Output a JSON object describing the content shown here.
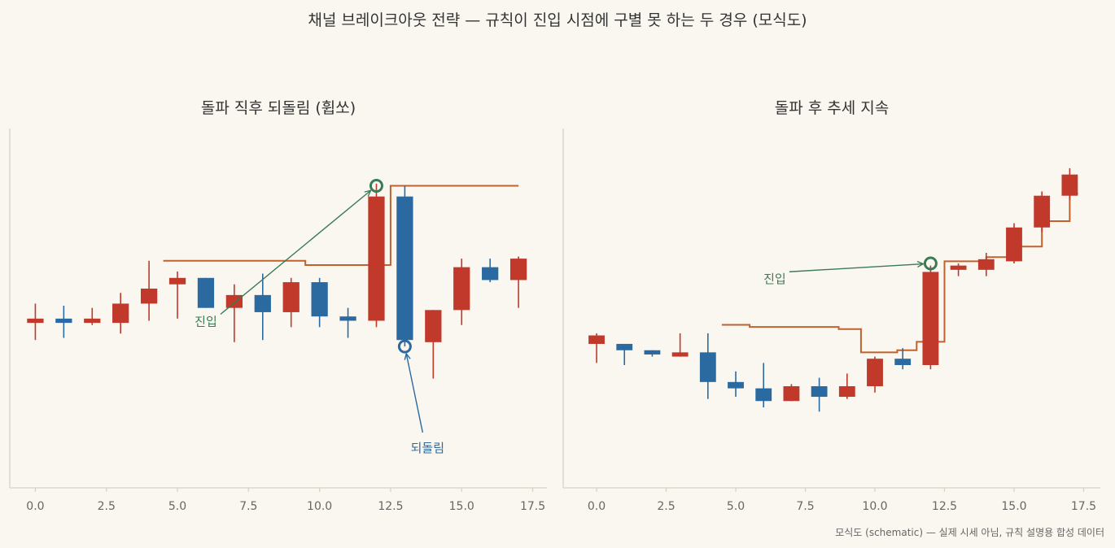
{
  "suptitle": "채널 브레이크아웃 전략 — 규칙이 진입 시점에 구별 못 하는 두 경우 (모식도)",
  "footnote": "모식도 (schematic) — 실제 시세 아님, 규칙 설명용 합성 데이터",
  "colors": {
    "up": "#c0392b",
    "down": "#2a6aa0",
    "channel": "#c0612e",
    "entry": "#3a7a55",
    "axis": "#d8d2c4",
    "tick_text": "#666666"
  },
  "chart_data": [
    {
      "type": "candlestick",
      "title": "돌파 직후 되돌림 (휩쏘)",
      "xlim": [
        -0.9,
        18.0
      ],
      "ylim": [
        96.4,
        113.1
      ],
      "xticks": [
        0.0,
        2.5,
        5.0,
        7.5,
        10.0,
        12.5,
        15.0,
        17.5
      ],
      "xtick_labels": [
        "0.0",
        "2.5",
        "5.0",
        "7.5",
        "10.0",
        "12.5",
        "15.0",
        "17.5"
      ],
      "candles": [
        {
          "x": 0,
          "open": 104.1,
          "high": 105.0,
          "low": 103.3,
          "close": 104.3
        },
        {
          "x": 1,
          "open": 104.3,
          "high": 104.9,
          "low": 103.4,
          "close": 104.1
        },
        {
          "x": 2,
          "open": 104.1,
          "high": 104.8,
          "low": 104.0,
          "close": 104.3
        },
        {
          "x": 3,
          "open": 104.1,
          "high": 105.5,
          "low": 103.6,
          "close": 105.0
        },
        {
          "x": 4,
          "open": 105.0,
          "high": 107.0,
          "low": 104.2,
          "close": 105.7
        },
        {
          "x": 5,
          "open": 105.9,
          "high": 106.5,
          "low": 104.3,
          "close": 106.2
        },
        {
          "x": 6,
          "open": 106.2,
          "high": 106.2,
          "low": 104.8,
          "close": 104.8
        },
        {
          "x": 7,
          "open": 104.8,
          "high": 105.9,
          "low": 103.2,
          "close": 105.4
        },
        {
          "x": 8,
          "open": 105.4,
          "high": 106.4,
          "low": 103.3,
          "close": 104.6
        },
        {
          "x": 9,
          "open": 104.6,
          "high": 106.2,
          "low": 103.9,
          "close": 106.0
        },
        {
          "x": 10,
          "open": 106.0,
          "high": 106.2,
          "low": 103.9,
          "close": 104.4
        },
        {
          "x": 11,
          "open": 104.4,
          "high": 104.8,
          "low": 103.4,
          "close": 104.2
        },
        {
          "x": 12,
          "open": 104.2,
          "high": 110.6,
          "low": 103.9,
          "close": 110.0
        },
        {
          "x": 13,
          "open": 110.0,
          "high": 110.5,
          "low": 103.0,
          "close": 103.3
        },
        {
          "x": 14,
          "open": 103.2,
          "high": 104.7,
          "low": 101.5,
          "close": 104.7
        },
        {
          "x": 15,
          "open": 104.7,
          "high": 107.1,
          "low": 104.0,
          "close": 106.7
        },
        {
          "x": 16,
          "open": 106.7,
          "high": 107.1,
          "low": 106.0,
          "close": 106.1
        },
        {
          "x": 17,
          "open": 106.1,
          "high": 107.2,
          "low": 104.8,
          "close": 107.1
        }
      ],
      "channel_x": [
        4.5,
        9.5,
        9.5,
        12.5,
        12.5,
        17.0
      ],
      "channel_y": [
        107.0,
        107.0,
        106.8,
        106.8,
        110.5,
        110.5
      ],
      "entry": {
        "x": 12.0,
        "y": 110.5,
        "label": "진입",
        "label_x": 6.0,
        "label_y": 104.2
      },
      "pullback": {
        "x": 13.0,
        "y": 103.0,
        "label": "되돌림",
        "label_x": 13.8,
        "label_y": 98.3
      }
    },
    {
      "type": "candlestick",
      "title": "돌파 후 추세 지속",
      "xlim": [
        -1.2,
        18.1
      ],
      "ylim": [
        93.1,
        110.0
      ],
      "xticks": [
        0.0,
        2.5,
        5.0,
        7.5,
        10.0,
        12.5,
        15.0,
        17.5
      ],
      "xtick_labels": [
        "0.0",
        "2.5",
        "5.0",
        "7.5",
        "10.0",
        "12.5",
        "15.0",
        "17.5"
      ],
      "candles": [
        {
          "x": 0,
          "open": 99.9,
          "high": 100.4,
          "low": 99.0,
          "close": 100.3
        },
        {
          "x": 1,
          "open": 99.9,
          "high": 99.9,
          "low": 98.9,
          "close": 99.6
        },
        {
          "x": 2,
          "open": 99.6,
          "high": 99.6,
          "low": 99.3,
          "close": 99.4
        },
        {
          "x": 3,
          "open": 99.3,
          "high": 100.4,
          "low": 99.3,
          "close": 99.5
        },
        {
          "x": 4,
          "open": 99.5,
          "high": 100.4,
          "low": 97.3,
          "close": 98.1
        },
        {
          "x": 5,
          "open": 98.1,
          "high": 98.6,
          "low": 97.4,
          "close": 97.8
        },
        {
          "x": 6,
          "open": 97.8,
          "high": 99.0,
          "low": 96.9,
          "close": 97.2
        },
        {
          "x": 7,
          "open": 97.2,
          "high": 98.0,
          "low": 97.2,
          "close": 97.9
        },
        {
          "x": 8,
          "open": 97.9,
          "high": 98.3,
          "low": 96.7,
          "close": 97.4
        },
        {
          "x": 9,
          "open": 97.4,
          "high": 98.5,
          "low": 97.3,
          "close": 97.9
        },
        {
          "x": 10,
          "open": 97.9,
          "high": 99.3,
          "low": 97.6,
          "close": 99.2
        },
        {
          "x": 11,
          "open": 99.2,
          "high": 99.7,
          "low": 98.7,
          "close": 98.9
        },
        {
          "x": 12,
          "open": 98.9,
          "high": 103.6,
          "low": 98.7,
          "close": 103.3
        },
        {
          "x": 13,
          "open": 103.4,
          "high": 103.7,
          "low": 103.1,
          "close": 103.6
        },
        {
          "x": 14,
          "open": 103.4,
          "high": 104.2,
          "low": 103.1,
          "close": 103.9
        },
        {
          "x": 15,
          "open": 103.8,
          "high": 105.6,
          "low": 103.7,
          "close": 105.4
        },
        {
          "x": 16,
          "open": 105.4,
          "high": 107.1,
          "low": 105.2,
          "close": 106.9
        },
        {
          "x": 17,
          "open": 106.9,
          "high": 108.2,
          "low": 106.7,
          "close": 107.9
        }
      ],
      "channel_x": [
        4.5,
        5.5,
        5.5,
        8.7,
        8.7,
        9.5,
        9.5,
        10.8,
        10.8,
        11.5,
        11.5,
        12.5,
        12.5,
        13.0,
        13.0,
        14.0,
        14.0,
        15.0,
        15.0,
        16.0,
        16.0,
        17.0,
        17.0,
        17.3
      ],
      "channel_y": [
        100.8,
        100.8,
        100.7,
        100.7,
        100.6,
        100.6,
        99.5,
        99.5,
        99.6,
        99.6,
        100.0,
        100.0,
        103.8,
        103.8,
        103.8,
        103.8,
        104.0,
        104.0,
        104.5,
        104.5,
        105.7,
        105.7,
        107.0,
        107.0
      ],
      "entry": {
        "x": 12.0,
        "y": 103.7,
        "label": "진입",
        "label_x": 6.4,
        "label_y": 103.0
      }
    }
  ]
}
